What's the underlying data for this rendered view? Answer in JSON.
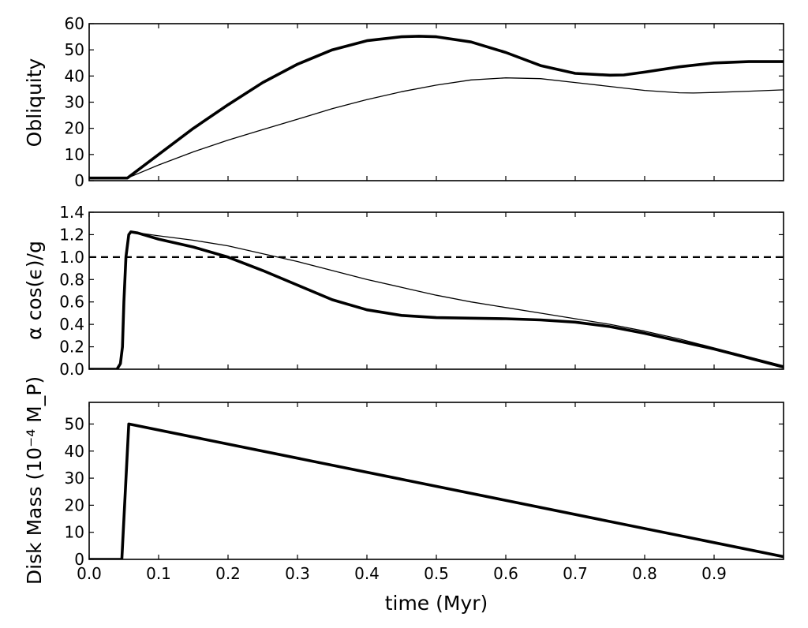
{
  "figure": {
    "xlabel": "time (Myr)"
  },
  "chart_data": [
    {
      "type": "line",
      "ylabel": "Obliquity",
      "xlim": [
        0.0,
        1.0
      ],
      "ylim": [
        0,
        60
      ],
      "xticks": [
        "0.0",
        "0.1",
        "0.2",
        "0.3",
        "0.4",
        "0.5",
        "0.6",
        "0.7",
        "0.8",
        "0.9"
      ],
      "yticks": [
        "0",
        "10",
        "20",
        "30",
        "40",
        "50",
        "60"
      ],
      "series": [
        {
          "style": "thick",
          "x": [
            0.0,
            0.055,
            0.1,
            0.15,
            0.2,
            0.25,
            0.3,
            0.35,
            0.4,
            0.45,
            0.475,
            0.5,
            0.55,
            0.6,
            0.65,
            0.7,
            0.75,
            0.77,
            0.8,
            0.85,
            0.9,
            0.95,
            1.0
          ],
          "y": [
            1,
            1,
            10,
            20,
            29,
            37.5,
            44.5,
            50,
            53.5,
            55,
            55.2,
            55,
            53,
            49,
            44,
            41,
            40.3,
            40.4,
            41.5,
            43.5,
            45,
            45.5,
            45.5
          ]
        },
        {
          "style": "thin",
          "x": [
            0.0,
            0.055,
            0.1,
            0.15,
            0.2,
            0.25,
            0.3,
            0.35,
            0.4,
            0.45,
            0.5,
            0.55,
            0.6,
            0.65,
            0.7,
            0.75,
            0.8,
            0.85,
            0.87,
            0.9,
            0.95,
            1.0
          ],
          "y": [
            1,
            1,
            6,
            11,
            15.5,
            19.5,
            23.5,
            27.5,
            31,
            34,
            36.5,
            38.5,
            39.3,
            39,
            37.5,
            36,
            34.5,
            33.6,
            33.5,
            33.7,
            34.2,
            34.7
          ]
        }
      ]
    },
    {
      "type": "line",
      "ylabel": "α cos(ϵ)/g",
      "xlim": [
        0.0,
        1.0
      ],
      "ylim": [
        0.0,
        1.4
      ],
      "xticks": [
        "0.0",
        "0.1",
        "0.2",
        "0.3",
        "0.4",
        "0.5",
        "0.6",
        "0.7",
        "0.8",
        "0.9"
      ],
      "yticks": [
        "0.0",
        "0.2",
        "0.4",
        "0.6",
        "0.8",
        "1.0",
        "1.2",
        "1.4"
      ],
      "reference_line": {
        "y": 1.0,
        "style": "dashed"
      },
      "series": [
        {
          "style": "thick",
          "x": [
            0.0,
            0.04,
            0.045,
            0.048,
            0.05,
            0.053,
            0.057,
            0.06,
            0.07,
            0.1,
            0.15,
            0.2,
            0.25,
            0.3,
            0.35,
            0.4,
            0.45,
            0.5,
            0.55,
            0.6,
            0.65,
            0.7,
            0.75,
            0.8,
            0.85,
            0.9,
            0.95,
            1.0
          ],
          "y": [
            0.0,
            0.0,
            0.05,
            0.2,
            0.6,
            1.0,
            1.2,
            1.225,
            1.215,
            1.16,
            1.09,
            1.0,
            0.88,
            0.75,
            0.62,
            0.53,
            0.48,
            0.46,
            0.455,
            0.45,
            0.44,
            0.42,
            0.38,
            0.32,
            0.25,
            0.18,
            0.1,
            0.02
          ]
        },
        {
          "style": "thin",
          "x": [
            0.06,
            0.1,
            0.15,
            0.2,
            0.25,
            0.3,
            0.35,
            0.4,
            0.45,
            0.5,
            0.55,
            0.6,
            0.65,
            0.7,
            0.75,
            0.8,
            0.85,
            0.9,
            0.95,
            1.0
          ],
          "y": [
            1.225,
            1.19,
            1.15,
            1.1,
            1.03,
            0.96,
            0.88,
            0.8,
            0.73,
            0.66,
            0.6,
            0.55,
            0.5,
            0.45,
            0.4,
            0.34,
            0.27,
            0.19,
            0.11,
            0.03
          ]
        }
      ]
    },
    {
      "type": "line",
      "ylabel": "Disk Mass (10⁻⁴ M_P)",
      "xlim": [
        0.0,
        1.0
      ],
      "ylim": [
        0,
        58
      ],
      "xticks": [
        "0.0",
        "0.1",
        "0.2",
        "0.3",
        "0.4",
        "0.5",
        "0.6",
        "0.7",
        "0.8",
        "0.9"
      ],
      "yticks": [
        "0",
        "10",
        "20",
        "30",
        "40",
        "50"
      ],
      "series": [
        {
          "style": "thick",
          "x": [
            0.0,
            0.047,
            0.057,
            1.0
          ],
          "y": [
            0,
            0,
            50,
            1
          ]
        }
      ]
    }
  ]
}
